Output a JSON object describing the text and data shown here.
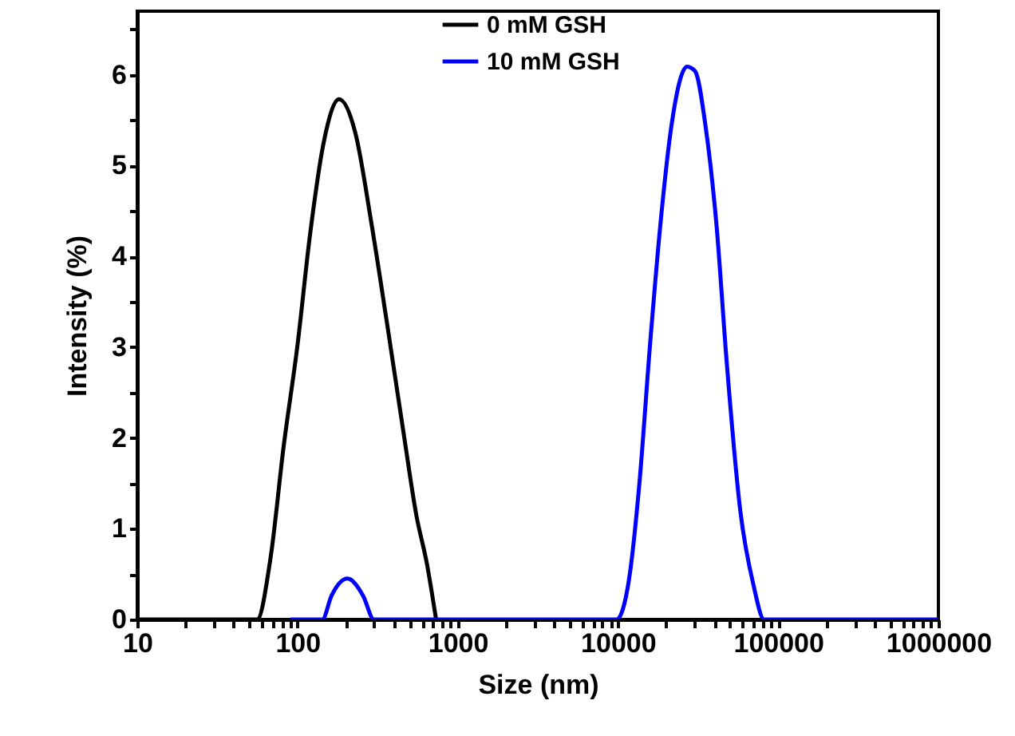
{
  "chart_data": {
    "type": "line",
    "xlabel": "Size (nm)",
    "ylabel": "Intensity (%)",
    "log": "x",
    "xlim": [
      10,
      1000000
    ],
    "ylim": [
      0,
      6.7
    ],
    "xticks": [
      10,
      {
        "value": 20,
        "label": null
      },
      {
        "value": 30,
        "label": null
      },
      {
        "value": 40,
        "label": null
      },
      {
        "value": 50,
        "label": null
      },
      {
        "value": 60,
        "label": null
      },
      {
        "value": 70,
        "label": null
      },
      {
        "value": 80,
        "label": null
      },
      {
        "value": 90,
        "label": null
      },
      100,
      {
        "value": 200,
        "label": null
      },
      {
        "value": 300,
        "label": null
      },
      {
        "value": 400,
        "label": null
      },
      {
        "value": 500,
        "label": null
      },
      {
        "value": 600,
        "label": null
      },
      {
        "value": 700,
        "label": null
      },
      {
        "value": 800,
        "label": null
      },
      {
        "value": 900,
        "label": null
      },
      1000,
      {
        "value": 2000,
        "label": null
      },
      {
        "value": 3000,
        "label": null
      },
      {
        "value": 4000,
        "label": null
      },
      {
        "value": 5000,
        "label": null
      },
      {
        "value": 6000,
        "label": null
      },
      {
        "value": 7000,
        "label": null
      },
      {
        "value": 8000,
        "label": null
      },
      {
        "value": 9000,
        "label": null
      },
      10000,
      {
        "value": 20000,
        "label": null
      },
      {
        "value": 30000,
        "label": null
      },
      {
        "value": 40000,
        "label": null
      },
      {
        "value": 50000,
        "label": null
      },
      {
        "value": 60000,
        "label": null
      },
      {
        "value": 70000,
        "label": null
      },
      {
        "value": 80000,
        "label": null
      },
      {
        "value": 90000,
        "label": null
      },
      100000,
      {
        "value": 200000,
        "label": null
      },
      {
        "value": 300000,
        "label": null
      },
      {
        "value": 400000,
        "label": null
      },
      {
        "value": 500000,
        "label": null
      },
      {
        "value": 600000,
        "label": null
      },
      {
        "value": 700000,
        "label": null
      },
      {
        "value": 800000,
        "label": null
      },
      {
        "value": 900000,
        "label": null
      },
      1000000
    ],
    "yticks": [
      0,
      {
        "value": 0.5,
        "label": null
      },
      1,
      {
        "value": 1.5,
        "label": null
      },
      2,
      {
        "value": 2.5,
        "label": null
      },
      3,
      {
        "value": 3.5,
        "label": null
      },
      4,
      {
        "value": 4.5,
        "label": null
      },
      5,
      {
        "value": 5.5,
        "label": null
      },
      6,
      {
        "value": 6.5,
        "label": null
      }
    ],
    "grid": false,
    "legend": "top",
    "marker": "none",
    "line_style": "solid",
    "series": [
      {
        "name": "0 mM GSH",
        "color": "#000000",
        "x": [
          10,
          56,
          67.8,
          81.9,
          100,
          120,
          145.6,
          182,
          229.6,
          289,
          363,
          457,
          553,
          643,
          733
        ],
        "values": [
          0,
          0,
          0.67,
          1.9,
          3.02,
          4.25,
          5.25,
          5.73,
          5.36,
          4.37,
          3.25,
          2.08,
          1.14,
          0.61,
          0
        ]
      },
      {
        "name": "10 mM GSH",
        "color": "#0000ff",
        "x": [
          90,
          143,
          163,
          205,
          257,
          300,
          9800,
          11700,
          13600,
          15850,
          18450,
          21500,
          27000,
          30300,
          35300,
          41100,
          48000,
          58000,
          70100,
          81800,
          1000000
        ],
        "values": [
          0,
          0,
          0.26,
          0.45,
          0.26,
          0,
          0,
          0.43,
          1.49,
          3.02,
          4.37,
          5.42,
          6.09,
          6.04,
          5.42,
          4.37,
          2.78,
          1.2,
          0.38,
          0,
          0
        ]
      }
    ]
  }
}
